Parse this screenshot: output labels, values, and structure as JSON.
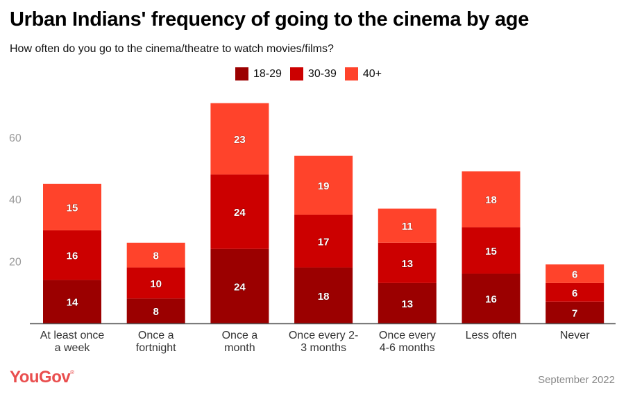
{
  "chart_data": {
    "type": "bar",
    "stacked": true,
    "title": "Urban Indians' frequency of going to the cinema by age",
    "subtitle": "How often do you go to the cinema/theatre to watch movies/films?",
    "categories": [
      [
        "At least once",
        "a week"
      ],
      [
        "Once a",
        "fortnight"
      ],
      [
        "Once a",
        "month"
      ],
      [
        "Once every 2-",
        "3 months"
      ],
      [
        "Once every",
        "4-6 months"
      ],
      [
        "Less often"
      ],
      [
        "Never"
      ]
    ],
    "series": [
      {
        "name": "18-29",
        "color": "#9b0000",
        "values": [
          14,
          8,
          24,
          18,
          13,
          16,
          7
        ]
      },
      {
        "name": "30-39",
        "color": "#cc0000",
        "values": [
          16,
          10,
          24,
          17,
          13,
          15,
          6
        ]
      },
      {
        "name": "40+",
        "color": "#ff432b",
        "values": [
          15,
          8,
          23,
          19,
          11,
          18,
          6
        ]
      }
    ],
    "yticks": [
      20,
      40,
      60
    ],
    "ylim": [
      0,
      75
    ],
    "xlabel": "",
    "ylabel": "",
    "grid": false,
    "legend_position": "top-center"
  },
  "footer": {
    "brand": "YouGov",
    "brand_mark": "®",
    "date": "September 2022"
  }
}
